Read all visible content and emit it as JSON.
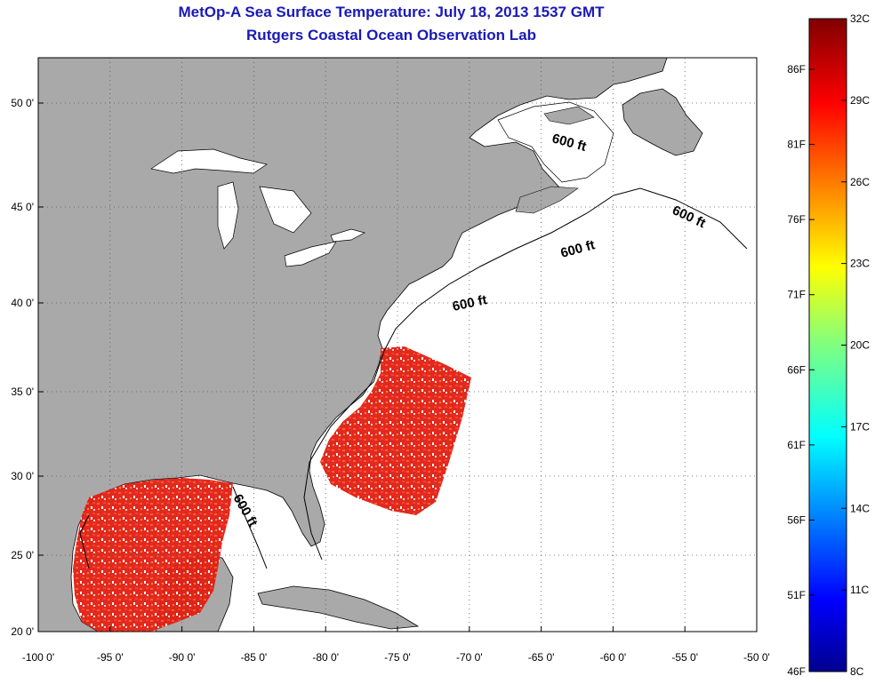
{
  "header": {
    "title": "MetOp-A Sea Surface Temperature:  July 18, 2013 1537 GMT",
    "subtitle": "Rutgers Coastal Ocean Observation Lab"
  },
  "map": {
    "lon_range": [
      -100,
      -50
    ],
    "lat_range": [
      20,
      52.5
    ],
    "lon_ticks": [
      {
        "value": -100,
        "label": "-100 0'"
      },
      {
        "value": -95,
        "label": "-95 0'"
      },
      {
        "value": -90,
        "label": "-90 0'"
      },
      {
        "value": -85,
        "label": "-85 0'"
      },
      {
        "value": -80,
        "label": "-80 0'"
      },
      {
        "value": -75,
        "label": "-75 0'"
      },
      {
        "value": -70,
        "label": "-70 0'"
      },
      {
        "value": -65,
        "label": "-65 0'"
      },
      {
        "value": -60,
        "label": "-60 0'"
      },
      {
        "value": -55,
        "label": "-55 0'"
      },
      {
        "value": -50,
        "label": "-50 0'"
      }
    ],
    "lat_ticks": [
      {
        "value": 20,
        "label": "20 0'"
      },
      {
        "value": 25,
        "label": "25 0'"
      },
      {
        "value": 30,
        "label": "30 0'"
      },
      {
        "value": 35,
        "label": "35 0'"
      },
      {
        "value": 40,
        "label": "40 0'"
      },
      {
        "value": 45,
        "label": "45 0'"
      },
      {
        "value": 50,
        "label": "50 0'"
      }
    ],
    "grid": "dotted",
    "isobath_label": "600 ft",
    "colors": {
      "land": "#a9a9a9",
      "ocean": "#ffffff",
      "water_sst": "#e8251a",
      "coast": "#000000"
    }
  },
  "colorbar": {
    "min_c": 8,
    "max_c": 32,
    "celsius_labels": [
      "32C",
      "29C",
      "26C",
      "23C",
      "20C",
      "17C",
      "14C",
      "11C",
      "8C"
    ],
    "fahrenheit_labels": [
      "86F",
      "81F",
      "76F",
      "71F",
      "66F",
      "61F",
      "56F",
      "51F",
      "46F"
    ],
    "colormap": "jet"
  }
}
